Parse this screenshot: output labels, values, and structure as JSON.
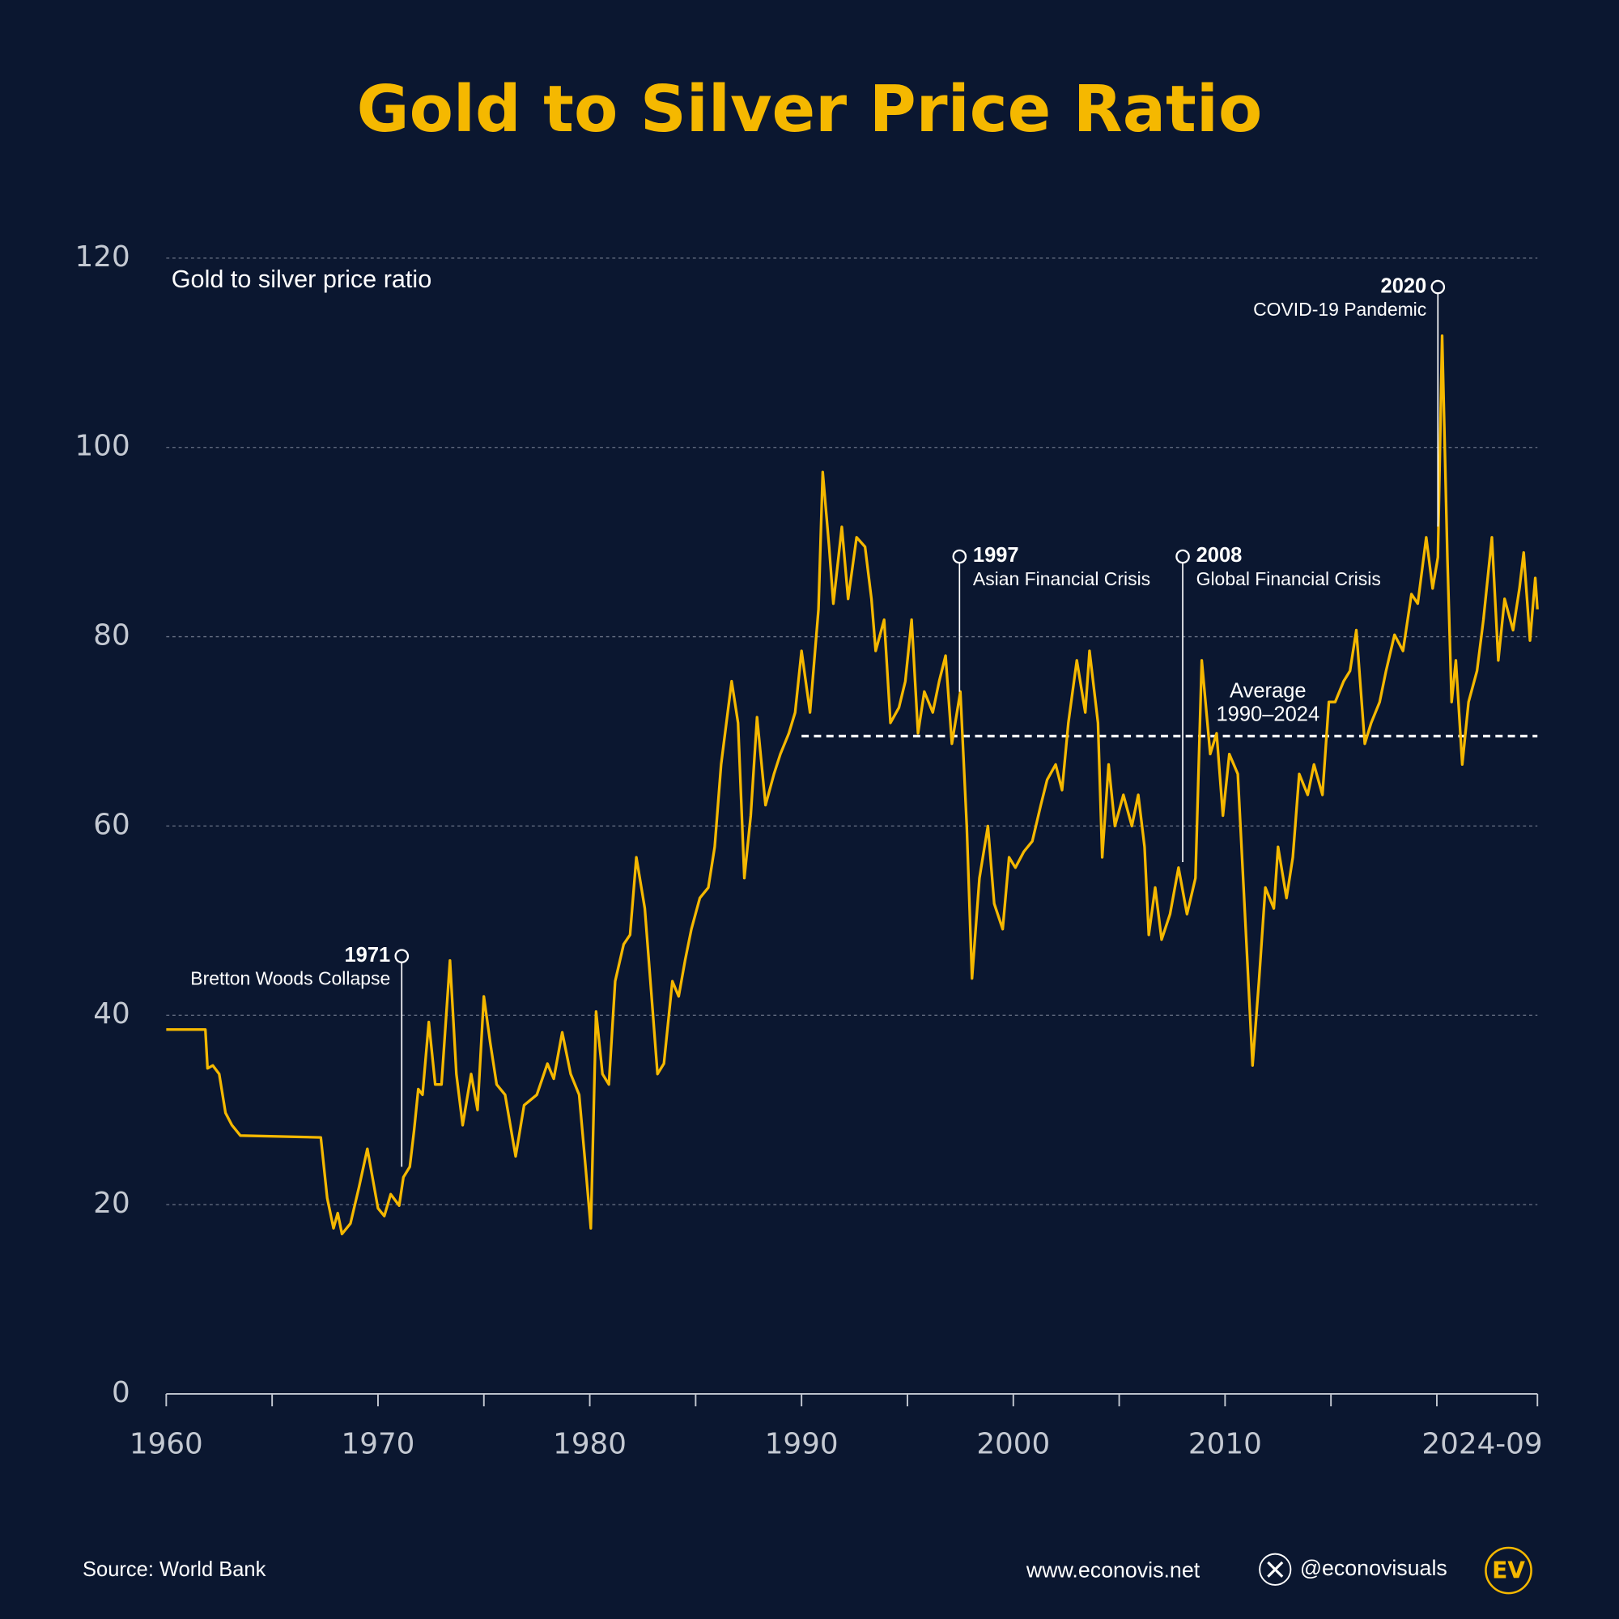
{
  "chart_data": {
    "type": "line",
    "title": "Gold to Silver Price Ratio",
    "x": [
      1960,
      1961.85,
      1961.95,
      1962.2,
      1962.5,
      1962.8,
      1963.1,
      1963.5,
      1967.3,
      1967.6,
      1967.9,
      1968.1,
      1968.3,
      1968.7,
      1969.1,
      1969.5,
      1970,
      1970.3,
      1970.6,
      1971,
      1971.2,
      1971.5,
      1971.7,
      1971.9,
      1972.1,
      1972.4,
      1972.7,
      1973,
      1973.4,
      1973.7,
      1974,
      1974.4,
      1974.7,
      1975,
      1975.3,
      1975.6,
      1976,
      1976.5,
      1976.9,
      1977.5,
      1978,
      1978.3,
      1978.7,
      1979.1,
      1979.5,
      1979.8,
      1980.05,
      1980.3,
      1980.6,
      1980.9,
      1981.2,
      1981.6,
      1981.9,
      1982.2,
      1982.6,
      1982.9,
      1983.2,
      1983.5,
      1983.9,
      1984.2,
      1984.5,
      1984.8,
      1985.2,
      1985.6,
      1985.9,
      1986.2,
      1986.7,
      1987,
      1987.3,
      1987.6,
      1987.9,
      1988.3,
      1988.7,
      1989,
      1989.4,
      1989.7,
      1990,
      1990.4,
      1990.8,
      1991,
      1991.3,
      1991.5,
      1991.9,
      1992.2,
      1992.6,
      1993,
      1993.3,
      1993.5,
      1993.9,
      1994.2,
      1994.6,
      1994.9,
      1995.2,
      1995.5,
      1995.8,
      1996.2,
      1996.5,
      1996.8,
      1997.1,
      1997.5,
      1997.8,
      1998.05,
      1998.4,
      1998.8,
      1999.1,
      1999.5,
      1999.8,
      2000.1,
      2000.5,
      2000.9,
      2001.3,
      2001.6,
      2002,
      2002.3,
      2002.6,
      2003,
      2003.4,
      2003.6,
      2004,
      2004.2,
      2004.5,
      2004.8,
      2005.2,
      2005.6,
      2005.9,
      2006.2,
      2006.4,
      2006.7,
      2007,
      2007.4,
      2007.8,
      2008.2,
      2008.6,
      2008.9,
      2009.3,
      2009.6,
      2009.9,
      2010.2,
      2010.6,
      2011,
      2011.3,
      2011.6,
      2011.9,
      2012.3,
      2012.5,
      2012.9,
      2013.2,
      2013.5,
      2013.9,
      2014.2,
      2014.6,
      2014.9,
      2015.2,
      2015.6,
      2015.9,
      2016.2,
      2016.6,
      2016.9,
      2017.3,
      2017.6,
      2018,
      2018.4,
      2018.8,
      2019.1,
      2019.5,
      2019.8,
      2020.05,
      2020.25,
      2020.5,
      2020.7,
      2020.9,
      2021.2,
      2021.5,
      2021.9,
      2022.2,
      2022.6,
      2022.9,
      2023.2,
      2023.6,
      2023.9,
      2024.1,
      2024.4,
      2024.65,
      2024.75
    ],
    "series": [
      {
        "name": "Gold to silver price ratio",
        "color": "#f5b800",
        "values": [
          38.5,
          38.5,
          34.4,
          34.7,
          33.8,
          29.7,
          28.4,
          27.3,
          27.1,
          20.7,
          17.5,
          19.1,
          16.9,
          18,
          21.8,
          25.9,
          19.6,
          18.8,
          21.1,
          19.9,
          22.9,
          24,
          27.8,
          32.2,
          31.6,
          39.3,
          32.7,
          32.7,
          45.8,
          33.8,
          28.4,
          33.8,
          30,
          42,
          37.1,
          32.7,
          31.6,
          25.1,
          30.5,
          31.6,
          34.9,
          33.3,
          38.2,
          33.8,
          31.6,
          24,
          17.5,
          40.4,
          33.8,
          32.7,
          43.6,
          47.5,
          48.5,
          56.7,
          51.3,
          42.5,
          33.8,
          34.9,
          43.6,
          42,
          45.8,
          49.1,
          52.4,
          53.5,
          57.8,
          66.5,
          75.3,
          70.9,
          54.5,
          61.1,
          71.5,
          62.2,
          65.5,
          67.6,
          69.8,
          72,
          78.5,
          72,
          82.9,
          97.4,
          89.5,
          83.5,
          91.6,
          84,
          90.5,
          89.5,
          84,
          78.5,
          81.8,
          70.9,
          72.5,
          75.3,
          81.8,
          69.8,
          74.2,
          72,
          75.3,
          78,
          68.7,
          74.2,
          60,
          43.9,
          54.5,
          60,
          51.8,
          49.1,
          56.7,
          55.6,
          57.3,
          58.4,
          62.2,
          64.9,
          66.5,
          63.8,
          70.9,
          77.5,
          72,
          78.5,
          70.9,
          56.7,
          66.5,
          60,
          63.3,
          60,
          63.3,
          57.8,
          48.5,
          53.5,
          48,
          50.7,
          55.6,
          50.7,
          54.5,
          77.5,
          67.6,
          69.8,
          61.1,
          67.6,
          65.5,
          48,
          34.7,
          43.6,
          53.5,
          51.3,
          57.8,
          52.4,
          56.7,
          65.5,
          63.3,
          66.5,
          63.3,
          73.1,
          73.1,
          75.3,
          76.4,
          80.7,
          68.7,
          70.9,
          73.1,
          76.4,
          80.2,
          78.5,
          84.5,
          83.5,
          90.5,
          85.1,
          88.4,
          111.8,
          88.4,
          73.1,
          77.5,
          66.5,
          73.1,
          76.4,
          81.8,
          90.5,
          77.5,
          84,
          80.7,
          85.1,
          88.9,
          79.6,
          86.2,
          82.9
        ]
      }
    ],
    "xlim": [
      1960,
      2024.75
    ],
    "xticks": [
      1960,
      1970,
      1980,
      1990,
      2000,
      2010,
      {
        "value": 2024.75,
        "label": "2024-09"
      }
    ],
    "xminorticks": [
      1965,
      1975,
      1985,
      1995,
      2005,
      2015,
      2020
    ],
    "ylim": [
      0,
      120
    ],
    "yticks": [
      0,
      20,
      40,
      60,
      80,
      100,
      120
    ],
    "grid": true,
    "average": {
      "value": 69.5,
      "start": 1990,
      "end": 2024.75,
      "label": [
        "Average",
        "1990–2024"
      ]
    },
    "annotations": [
      {
        "x": 1971.12,
        "label": "1971",
        "text": "Bretton Woods Collapse"
      },
      {
        "x": 1997.46,
        "label": "1997",
        "text": "Asian Financial Crisis"
      },
      {
        "x": 2008.0,
        "label": "2008",
        "text": "Global Financial Crisis"
      },
      {
        "x": 2020.05,
        "label": "2020",
        "text": "COVID-19 Pandemic"
      }
    ]
  },
  "footer": {
    "source": "Source: World Bank",
    "website": "www.econovis.net",
    "handle": "@econovisuals",
    "logo": "EV"
  }
}
